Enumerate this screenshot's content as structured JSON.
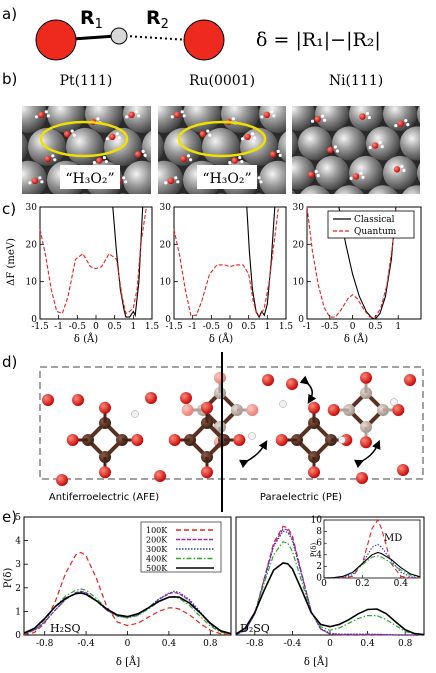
{
  "panel_a": {
    "label": "a)",
    "r1": "R",
    "r1_sub": "1",
    "r2": "R",
    "r2_sub": "2",
    "equation": "δ = |R₁|−|R₂|"
  },
  "panel_b": {
    "label": "b)",
    "surfaces": [
      {
        "title": "Pt(111)",
        "annotation": "“H₃O₂”",
        "ellipse": true
      },
      {
        "title": "Ru(0001)",
        "annotation": "“H₃O₂”",
        "ellipse": true
      },
      {
        "title": "Ni(111)",
        "annotation": "",
        "ellipse": false
      }
    ]
  },
  "panel_c": {
    "label": "c)",
    "ylabel": "ΔF (meV)",
    "xlabel": "δ (Å)",
    "legend": [
      "Classical",
      "Quantum"
    ],
    "colors": {
      "classical": "#000000",
      "quantum": "#e8231e"
    }
  },
  "panel_d": {
    "label": "d)",
    "left_caption": "Antiferroelectric (AFE)",
    "right_caption": "Paraelectric (PE)"
  },
  "panel_e": {
    "label": "e)",
    "ylabel": "P(δ)",
    "xlabel": "δ [Å]",
    "legend": [
      "100K",
      "200K",
      "300K",
      "400K",
      "500K"
    ],
    "left_name": "H₂SQ",
    "right_name": "D₂SQ",
    "inset_label": "MD",
    "inset_ylabel": "P(δ)",
    "colors": {
      "100K": "#e8231e",
      "200K": "#9b2fa8",
      "300K": "#2a3cc8",
      "400K": "#2da82d",
      "500K": "#000000"
    }
  },
  "chart_data": [
    {
      "type": "line",
      "title": "Pt(111)",
      "xlabel": "δ (Å)",
      "ylabel": "ΔF (meV)",
      "xlim": [
        -1.5,
        1.5
      ],
      "ylim": [
        0,
        30
      ],
      "xticks": [
        -1.5,
        -1,
        -0.5,
        0,
        0.5,
        1,
        1.5
      ],
      "yticks": [
        0,
        10,
        20,
        30
      ],
      "series": [
        {
          "name": "Classical",
          "x": [
            0.45,
            0.55,
            0.65,
            0.75,
            0.8,
            0.9,
            1.0,
            1.05,
            1.15,
            1.25
          ],
          "y": [
            30,
            18,
            8,
            2.5,
            0.5,
            0.5,
            2,
            1,
            10,
            30
          ]
        },
        {
          "name": "Quantum",
          "x": [
            -1.5,
            -1.35,
            -1.2,
            -1.05,
            -0.9,
            -0.75,
            -0.55,
            -0.35,
            -0.15,
            0.0,
            0.15,
            0.35,
            0.55,
            0.7,
            0.8,
            0.9,
            1.0,
            1.1,
            1.2,
            1.35
          ],
          "y": [
            24,
            17,
            8,
            2,
            1.5,
            6,
            16,
            17.5,
            14,
            13.5,
            14,
            17.5,
            16,
            6,
            1.5,
            2,
            3,
            8,
            20,
            30
          ]
        }
      ]
    },
    {
      "type": "line",
      "title": "Ru(0001)",
      "xlabel": "δ (Å)",
      "ylabel": "ΔF (meV)",
      "xlim": [
        -1.5,
        1.5
      ],
      "ylim": [
        0,
        30
      ],
      "xticks": [
        -1.5,
        -1,
        -0.5,
        0,
        0.5,
        1,
        1.5
      ],
      "yticks": [
        0,
        10,
        20,
        30
      ],
      "series": [
        {
          "name": "Classical",
          "x": [
            0.45,
            0.52,
            0.6,
            0.7,
            0.78,
            0.85,
            0.92,
            1.0,
            1.1,
            1.2
          ],
          "y": [
            30,
            18,
            8,
            2,
            0.5,
            2,
            1,
            4,
            15,
            30
          ]
        },
        {
          "name": "Quantum",
          "x": [
            -1.5,
            -1.35,
            -1.2,
            -1.05,
            -0.9,
            -0.75,
            -0.55,
            -0.35,
            -0.15,
            0.0,
            0.15,
            0.35,
            0.5,
            0.62,
            0.72,
            0.82,
            0.92,
            1.05,
            1.2,
            1.3
          ],
          "y": [
            24,
            17,
            8,
            1,
            1,
            5,
            12,
            14.5,
            14.5,
            14,
            14.5,
            14.5,
            12,
            5,
            1,
            1,
            3,
            10,
            22,
            30
          ]
        }
      ]
    },
    {
      "type": "line",
      "title": "Ni(111)",
      "xlabel": "δ (Å)",
      "xlim": [
        -1.0,
        1.5
      ],
      "ylim": [
        0,
        30
      ],
      "xticks": [
        -1,
        -0.5,
        0,
        0.5,
        1
      ],
      "yticks": [
        0,
        10,
        20,
        30
      ],
      "series": [
        {
          "name": "Classical",
          "x": [
            -0.3,
            -0.15,
            0.0,
            0.15,
            0.3,
            0.42,
            0.5,
            0.6,
            0.72,
            0.85,
            0.95
          ],
          "y": [
            30,
            20,
            12,
            6,
            2,
            0.3,
            0,
            1.5,
            6,
            16,
            30
          ]
        },
        {
          "name": "Quantum",
          "x": [
            -1.0,
            -0.88,
            -0.75,
            -0.62,
            -0.5,
            -0.38,
            -0.25,
            -0.1,
            0.0,
            0.1,
            0.25,
            0.38,
            0.5,
            0.62,
            0.75,
            0.88,
            0.95
          ],
          "y": [
            30,
            18,
            9,
            3,
            0.5,
            0.5,
            2.5,
            5.5,
            6.5,
            5.5,
            2.5,
            0.5,
            0.5,
            3,
            9,
            20,
            30
          ]
        }
      ]
    },
    {
      "type": "line",
      "title": "H₂SQ",
      "xlabel": "δ [Å]",
      "ylabel": "P(δ)",
      "xlim": [
        -1.0,
        1.0
      ],
      "ylim": [
        0,
        5
      ],
      "xticks": [
        -0.8,
        -0.4,
        0,
        0.4,
        0.8
      ],
      "yticks": [
        0,
        1,
        2,
        3,
        4,
        5
      ],
      "x": [
        -1.0,
        -0.9,
        -0.8,
        -0.7,
        -0.6,
        -0.5,
        -0.45,
        -0.4,
        -0.3,
        -0.2,
        -0.1,
        0.0,
        0.1,
        0.2,
        0.3,
        0.4,
        0.45,
        0.5,
        0.6,
        0.7,
        0.8,
        0.9,
        1.0
      ],
      "series": [
        {
          "name": "100K",
          "values": [
            0.02,
            0.1,
            0.5,
            1.4,
            2.6,
            3.4,
            3.5,
            3.35,
            2.4,
            1.2,
            0.55,
            0.4,
            0.5,
            0.75,
            1.0,
            1.15,
            1.15,
            1.1,
            0.85,
            0.5,
            0.2,
            0.05,
            0.01
          ]
        },
        {
          "name": "200K",
          "values": [
            0.05,
            0.2,
            0.55,
            1.05,
            1.5,
            1.8,
            1.85,
            1.8,
            1.45,
            1.05,
            0.8,
            0.75,
            0.85,
            1.15,
            1.5,
            1.75,
            1.8,
            1.75,
            1.45,
            0.95,
            0.45,
            0.15,
            0.04
          ]
        },
        {
          "name": "300K",
          "values": [
            0.05,
            0.2,
            0.55,
            1.05,
            1.5,
            1.78,
            1.82,
            1.78,
            1.45,
            1.05,
            0.8,
            0.75,
            0.85,
            1.15,
            1.52,
            1.78,
            1.85,
            1.8,
            1.5,
            1.0,
            0.48,
            0.16,
            0.05
          ]
        },
        {
          "name": "400K",
          "values": [
            0.06,
            0.24,
            0.65,
            1.2,
            1.65,
            1.9,
            1.95,
            1.9,
            1.55,
            1.1,
            0.8,
            0.72,
            0.82,
            1.1,
            1.4,
            1.6,
            1.6,
            1.55,
            1.25,
            0.8,
            0.38,
            0.12,
            0.04
          ]
        },
        {
          "name": "500K",
          "values": [
            0.08,
            0.28,
            0.7,
            1.2,
            1.55,
            1.75,
            1.78,
            1.72,
            1.45,
            1.1,
            0.85,
            0.78,
            0.9,
            1.15,
            1.42,
            1.6,
            1.62,
            1.6,
            1.35,
            0.95,
            0.5,
            0.18,
            0.06
          ]
        }
      ],
      "legend": "top-right"
    },
    {
      "type": "line",
      "title": "D₂SQ",
      "xlabel": "δ [Å]",
      "xlim": [
        -1.0,
        1.0
      ],
      "ylim": [
        0,
        5
      ],
      "xticks": [
        -0.8,
        -0.4,
        0,
        0.4,
        0.8
      ],
      "yticks": [
        0,
        1,
        2,
        3,
        4,
        5
      ],
      "x": [
        -1.0,
        -0.9,
        -0.8,
        -0.7,
        -0.6,
        -0.5,
        -0.45,
        -0.4,
        -0.3,
        -0.2,
        -0.1,
        0.0,
        0.1,
        0.2,
        0.3,
        0.4,
        0.5,
        0.6,
        0.7,
        0.8,
        0.9,
        1.0
      ],
      "series": [
        {
          "name": "100K",
          "values": [
            0.02,
            0.2,
            0.9,
            2.4,
            3.9,
            4.6,
            4.55,
            4.2,
            2.6,
            1.0,
            0.25,
            0.04,
            0.01,
            0.01,
            0.01,
            0.01,
            0.01,
            0.01,
            0.0,
            0.0,
            0.0,
            0.0
          ]
        },
        {
          "name": "200K",
          "values": [
            0.02,
            0.2,
            0.9,
            2.35,
            3.8,
            4.5,
            4.45,
            4.1,
            2.55,
            1.0,
            0.25,
            0.05,
            0.02,
            0.02,
            0.02,
            0.02,
            0.02,
            0.01,
            0.0,
            0.0,
            0.0,
            0.0
          ]
        },
        {
          "name": "300K",
          "values": [
            0.02,
            0.2,
            0.9,
            2.3,
            3.75,
            4.4,
            4.35,
            4.0,
            2.5,
            1.0,
            0.28,
            0.07,
            0.04,
            0.04,
            0.04,
            0.04,
            0.03,
            0.02,
            0.01,
            0.0,
            0.0,
            0.0
          ]
        },
        {
          "name": "400K",
          "values": [
            0.03,
            0.25,
            0.95,
            2.2,
            3.4,
            3.95,
            3.9,
            3.55,
            2.25,
            0.95,
            0.35,
            0.2,
            0.3,
            0.5,
            0.7,
            0.82,
            0.82,
            0.65,
            0.4,
            0.15,
            0.04,
            0.01
          ]
        },
        {
          "name": "500K",
          "values": [
            0.04,
            0.3,
            0.95,
            1.9,
            2.75,
            3.05,
            3.02,
            2.8,
            1.9,
            0.95,
            0.45,
            0.35,
            0.45,
            0.65,
            0.9,
            1.08,
            1.1,
            0.9,
            0.55,
            0.22,
            0.06,
            0.02
          ]
        }
      ]
    },
    {
      "type": "line",
      "title": "MD",
      "ylabel": "P(δ)",
      "xlim": [
        0,
        0.5
      ],
      "ylim": [
        0,
        10
      ],
      "xticks": [
        0,
        0.2,
        0.4
      ],
      "yticks": [
        0,
        2,
        4,
        6,
        8,
        10
      ],
      "x": [
        0.0,
        0.05,
        0.1,
        0.15,
        0.2,
        0.25,
        0.28,
        0.3,
        0.35,
        0.4,
        0.45,
        0.5
      ],
      "series": [
        {
          "name": "100K",
          "values": [
            0,
            0,
            0.05,
            0.3,
            2.5,
            8.5,
            10,
            8.5,
            2.5,
            0.3,
            0.02,
            0
          ]
        },
        {
          "name": "300K",
          "values": [
            0,
            0,
            0.1,
            0.6,
            2.5,
            5.3,
            5.8,
            5.3,
            3.0,
            1.0,
            0.2,
            0
          ]
        },
        {
          "name": "400K",
          "values": [
            0,
            0.05,
            0.25,
            0.9,
            2.3,
            3.6,
            3.8,
            3.6,
            2.6,
            1.4,
            0.5,
            0.1
          ]
        },
        {
          "name": "500K",
          "values": [
            0,
            0.05,
            0.3,
            1.0,
            2.5,
            4.0,
            4.4,
            4.2,
            3.2,
            1.8,
            0.7,
            0.2
          ]
        }
      ]
    }
  ]
}
